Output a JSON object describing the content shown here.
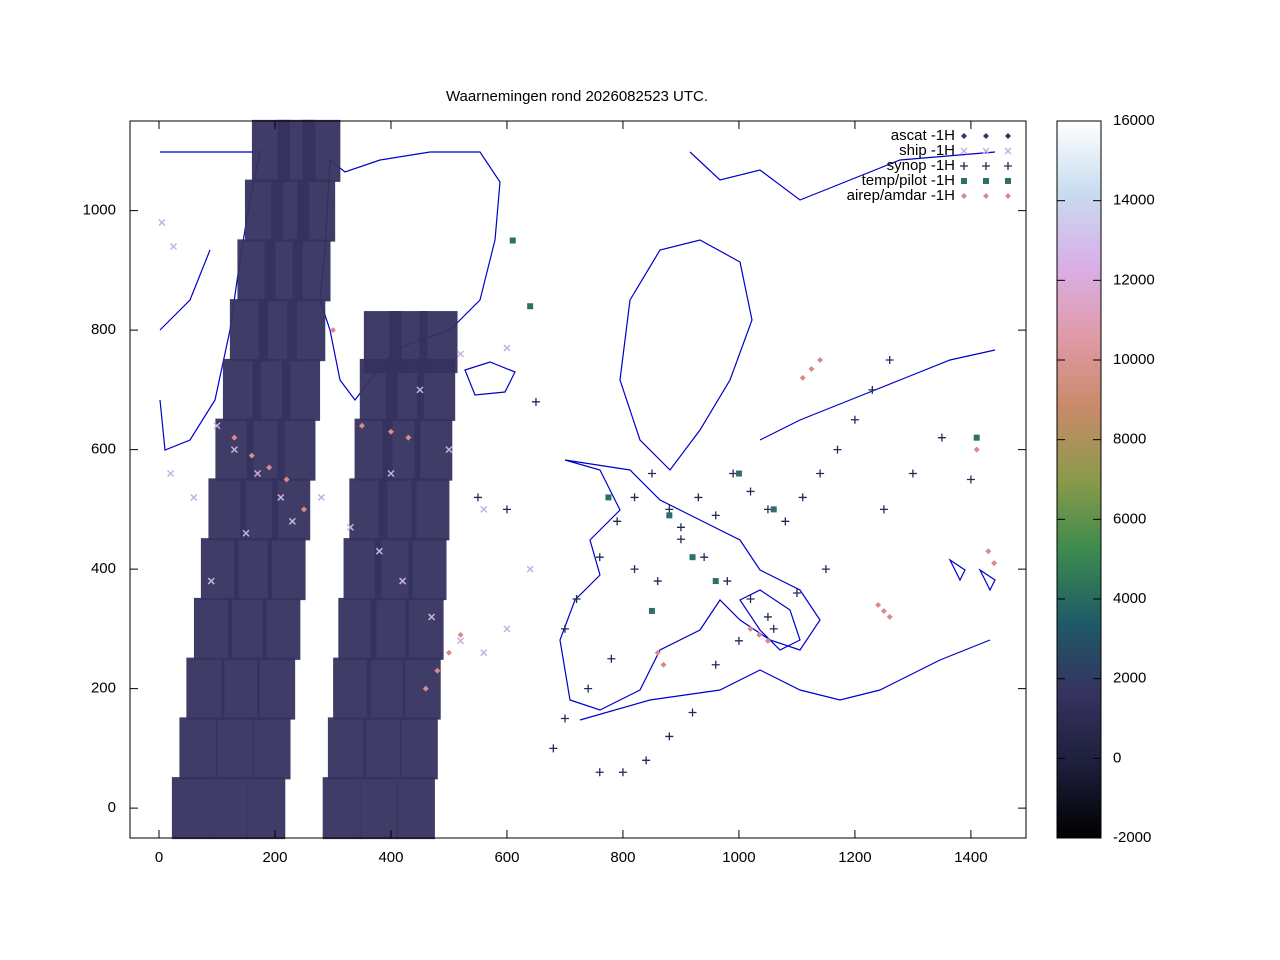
{
  "chart_data": {
    "type": "scatter",
    "title": "Waarnemingen rond 2026082523 UTC.",
    "xlim": [
      -50,
      1495
    ],
    "xticks": [
      0,
      200,
      400,
      600,
      800,
      1000,
      1200,
      1400
    ],
    "ylim": [
      -50,
      1150
    ],
    "yticks": [
      0,
      200,
      400,
      600,
      800,
      1000
    ],
    "cblim": [
      -2000,
      16000
    ],
    "cbticks": [
      -2000,
      0,
      2000,
      4000,
      6000,
      8000,
      10000,
      12000,
      14000,
      16000
    ],
    "palette": [
      "#000000",
      "#1c1e3a",
      "#35325f",
      "#1f5a68",
      "#3c8a4e",
      "#8a9a4a",
      "#c98a6a",
      "#e09aa8",
      "#d8b0e8",
      "#c8dcf0",
      "#ffffff"
    ],
    "series": [
      {
        "name": "ascat -1H",
        "color": "#35325f",
        "marker": "swath",
        "x": [
          55,
          120,
          185,
          68,
          131,
          194,
          80,
          141,
          202,
          93,
          152,
          211,
          105,
          162,
          220,
          118,
          173,
          228,
          130,
          184,
          237,
          143,
          194,
          245,
          155,
          205,
          254,
          168,
          215,
          263,
          181,
          226,
          271,
          193,
          237,
          280,
          315,
          379,
          443,
          324,
          385,
          448,
          333,
          391,
          453,
          342,
          398,
          458,
          351,
          405,
          463,
          361,
          411,
          468,
          370,
          418,
          473,
          379,
          424,
          478,
          386,
          430,
          482
        ],
        "y": [
          0,
          0,
          0,
          100,
          100,
          100,
          200,
          200,
          200,
          300,
          300,
          300,
          400,
          400,
          400,
          500,
          500,
          500,
          600,
          600,
          600,
          700,
          700,
          700,
          800,
          800,
          800,
          900,
          900,
          900,
          1000,
          1000,
          1000,
          1100,
          1100,
          1100,
          0,
          0,
          0,
          100,
          100,
          100,
          200,
          200,
          200,
          300,
          300,
          300,
          400,
          400,
          400,
          500,
          500,
          500,
          600,
          600,
          600,
          700,
          700,
          700,
          780,
          780,
          780
        ]
      },
      {
        "name": "ship -1H",
        "color": "#c8b0e0",
        "marker": "cross",
        "x": [
          5,
          20,
          60,
          100,
          130,
          170,
          230,
          280,
          330,
          380,
          420,
          470,
          520,
          560,
          600,
          640,
          560,
          500,
          450,
          520,
          600,
          25,
          90,
          150,
          210,
          400
        ],
        "y": [
          980,
          560,
          520,
          640,
          600,
          560,
          480,
          520,
          470,
          430,
          380,
          320,
          280,
          260,
          300,
          400,
          500,
          600,
          700,
          760,
          770,
          940,
          380,
          460,
          520,
          560
        ]
      },
      {
        "name": "synop -1H",
        "color": "#1f2d55",
        "marker": "plus",
        "x": [
          700,
          720,
          760,
          790,
          820,
          850,
          880,
          900,
          930,
          960,
          990,
          1020,
          1050,
          1080,
          1110,
          1140,
          1170,
          1200,
          1230,
          1260,
          820,
          860,
          900,
          940,
          980,
          1020,
          1060,
          780,
          740,
          700,
          680,
          760,
          800,
          840,
          880,
          920,
          960,
          1000,
          1050,
          1100,
          1150,
          1250,
          1300,
          1350,
          1400,
          650,
          600,
          550
        ],
        "y": [
          300,
          350,
          420,
          480,
          520,
          560,
          500,
          470,
          520,
          490,
          560,
          530,
          500,
          480,
          520,
          560,
          600,
          650,
          700,
          750,
          400,
          380,
          450,
          420,
          380,
          350,
          300,
          250,
          200,
          150,
          100,
          60,
          60,
          80,
          120,
          160,
          240,
          280,
          320,
          360,
          400,
          500,
          560,
          620,
          550,
          680,
          500,
          520
        ]
      },
      {
        "name": "temp/pilot -1H",
        "color": "#2e6f6a",
        "marker": "square",
        "x": [
          775,
          880,
          920,
          1060,
          1410,
          610,
          640,
          1000,
          850,
          960
        ],
        "y": [
          520,
          490,
          420,
          500,
          620,
          950,
          840,
          560,
          330,
          380
        ]
      },
      {
        "name": "airep/amdar -1H",
        "color": "#d98a8a",
        "marker": "diamond",
        "x": [
          1110,
          1125,
          1140,
          860,
          870,
          1240,
          1250,
          1260,
          1430,
          1440,
          1410,
          1020,
          1035,
          1050,
          460,
          480,
          500,
          520,
          130,
          160,
          190,
          220,
          250,
          300,
          350,
          400,
          430
        ],
        "y": [
          720,
          735,
          750,
          260,
          240,
          340,
          330,
          320,
          430,
          410,
          600,
          300,
          290,
          280,
          200,
          230,
          260,
          290,
          620,
          590,
          570,
          550,
          500,
          800,
          640,
          630,
          620
        ]
      }
    ]
  }
}
